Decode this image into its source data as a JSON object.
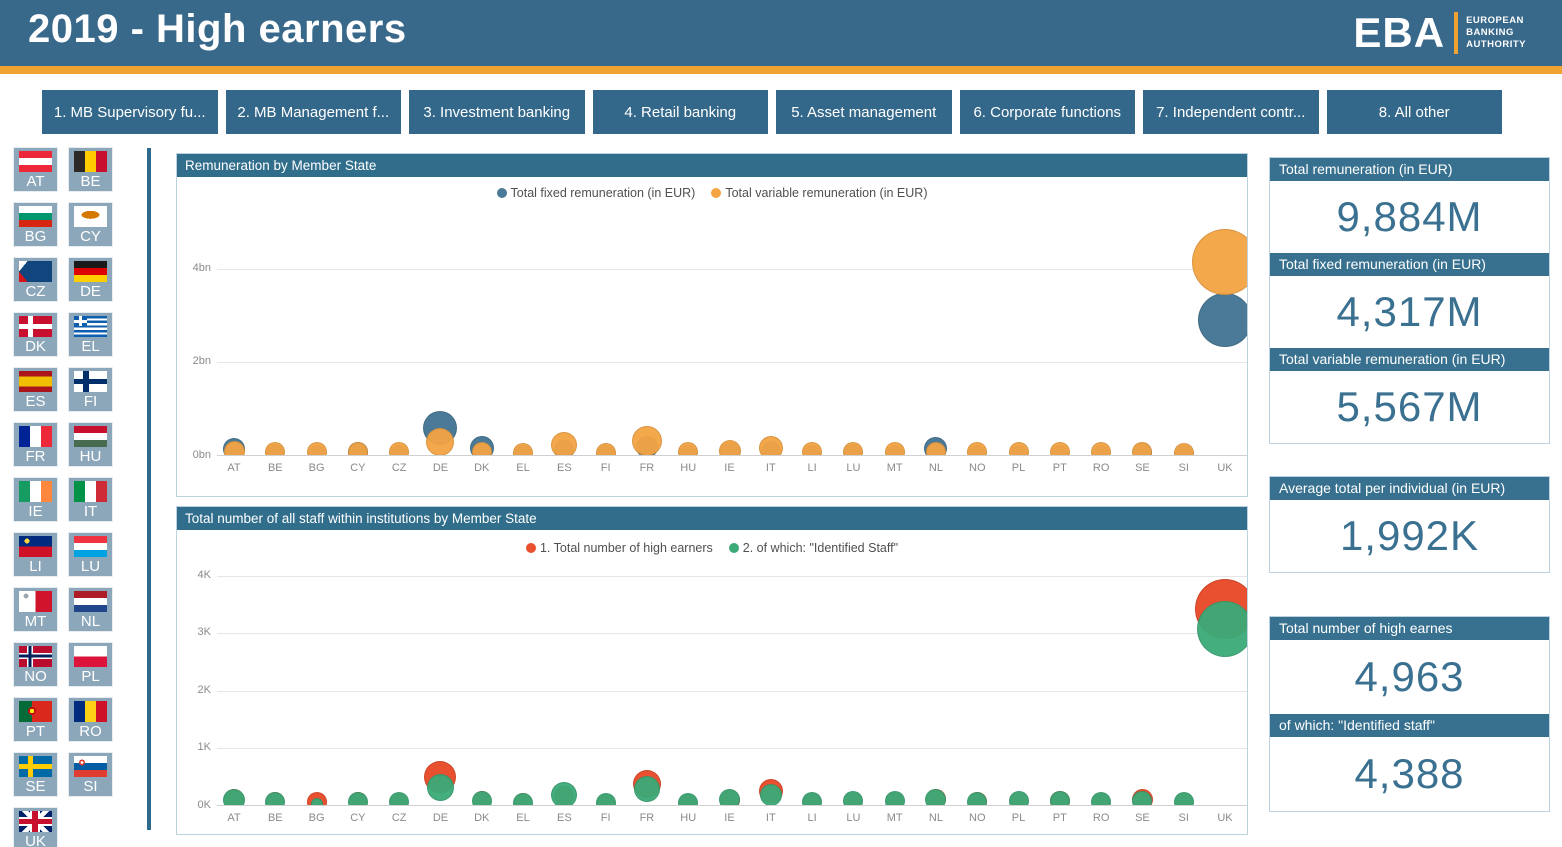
{
  "header": {
    "title": "2019 - High earners",
    "logo": {
      "abbr": "EBA",
      "lines": [
        "EUROPEAN",
        "BANKING",
        "AUTHORITY"
      ]
    }
  },
  "tabs": [
    {
      "label": "1. MB Supervisory fu..."
    },
    {
      "label": "2. MB Management f..."
    },
    {
      "label": "3. Investment banking"
    },
    {
      "label": "4. Retail banking"
    },
    {
      "label": "5. Asset management"
    },
    {
      "label": "6. Corporate functions"
    },
    {
      "label": "7. Independent contr..."
    },
    {
      "label": "8. All other"
    }
  ],
  "flags": [
    "AT",
    "BE",
    "BG",
    "CY",
    "CZ",
    "DE",
    "DK",
    "EL",
    "ES",
    "FI",
    "FR",
    "HU",
    "IE",
    "IT",
    "LI",
    "LU",
    "MT",
    "NL",
    "NO",
    "PL",
    "PT",
    "RO",
    "SE",
    "SI",
    "UK"
  ],
  "colors": {
    "header_teal": "#38688A",
    "accent_orange": "#F0A230",
    "fixed_blue": "#4A7A97",
    "variable_orange": "#F4A443",
    "high_earners_red": "#E8502F",
    "identified_green": "#3BAA78"
  },
  "chart_data": [
    {
      "type": "scatter",
      "title": "Remuneration by Member State",
      "categories": [
        "AT",
        "BE",
        "BG",
        "CY",
        "CZ",
        "DE",
        "DK",
        "EL",
        "ES",
        "FI",
        "FR",
        "HU",
        "IE",
        "IT",
        "LI",
        "LU",
        "MT",
        "NL",
        "NO",
        "PL",
        "PT",
        "RO",
        "SE",
        "SI",
        "UK"
      ],
      "unit": "bn EUR",
      "ylim": [
        0,
        5.26
      ],
      "grid": true,
      "legend_position": "top-center",
      "yticks": [
        {
          "label": "0bn",
          "value": 0
        },
        {
          "label": "2bn",
          "value": 2
        },
        {
          "label": "4bn",
          "value": 4
        }
      ],
      "series": [
        {
          "name": "Total fixed remuneration (in EUR)",
          "color": "#4A7A97",
          "values": [
            0.15,
            0.06,
            0.04,
            0.09,
            0.05,
            0.6,
            0.17,
            0.05,
            0.12,
            0.05,
            0.2,
            0.04,
            0.08,
            0.1,
            0.05,
            0.06,
            0.05,
            0.15,
            0.05,
            0.05,
            0.05,
            0.04,
            0.07,
            0.04,
            2.9
          ],
          "radii": [
            11,
            9,
            9,
            10,
            9,
            17,
            12,
            9,
            10,
            9,
            11,
            9,
            10,
            10,
            9,
            9,
            9,
            11.5,
            9,
            9,
            9,
            9,
            9.5,
            9,
            27
          ]
        },
        {
          "name": "Total variable remuneration (in EUR)",
          "color": "#F4A443",
          "values": [
            0.1,
            0.085,
            0.075,
            0.075,
            0.08,
            0.31,
            0.08,
            0.07,
            0.225,
            0.07,
            0.33,
            0.075,
            0.11,
            0.165,
            0.08,
            0.09,
            0.075,
            0.095,
            0.075,
            0.085,
            0.08,
            0.075,
            0.09,
            0.07,
            4.15
          ],
          "radii": [
            10.5,
            10,
            10,
            10,
            10,
            14,
            10,
            10,
            13,
            10,
            15,
            10,
            11,
            12,
            10,
            10,
            10,
            10,
            10,
            10,
            10,
            10,
            10,
            10,
            33
          ]
        }
      ]
    },
    {
      "type": "scatter",
      "title": "Total number of all staff within institutions by Member State",
      "categories": [
        "AT",
        "BE",
        "BG",
        "CY",
        "CZ",
        "DE",
        "DK",
        "EL",
        "ES",
        "FI",
        "FR",
        "HU",
        "IE",
        "IT",
        "LI",
        "LU",
        "MT",
        "NL",
        "NO",
        "PL",
        "PT",
        "RO",
        "SE",
        "SI",
        "UK"
      ],
      "unit": "K staff",
      "ylim": [
        0,
        4.26
      ],
      "grid": true,
      "legend_position": "top-center",
      "yticks": [
        {
          "label": "0K",
          "value": 0
        },
        {
          "label": "1K",
          "value": 1
        },
        {
          "label": "2K",
          "value": 2
        },
        {
          "label": "3K",
          "value": 3
        },
        {
          "label": "4K",
          "value": 4
        }
      ],
      "series": [
        {
          "name": "1. Total number of high earners",
          "color": "#E8502F",
          "values": [
            0.13,
            0.08,
            0.075,
            0.08,
            0.07,
            0.5,
            0.1,
            0.065,
            0.17,
            0.06,
            0.38,
            0.06,
            0.11,
            0.26,
            0.07,
            0.09,
            0.08,
            0.12,
            0.08,
            0.085,
            0.09,
            0.07,
            0.11,
            0.07,
            3.42
          ],
          "radii": [
            10,
            9,
            10,
            9,
            9,
            16,
            9,
            9,
            10,
            9,
            14,
            9,
            10,
            12,
            9,
            9,
            9,
            10,
            9.5,
            9,
            10,
            9,
            10.5,
            9,
            30
          ]
        },
        {
          "name": "2. of which: \"Identified Staff\"",
          "color": "#3BAA78",
          "values": [
            0.1,
            0.075,
            0.03,
            0.075,
            0.065,
            0.33,
            0.095,
            0.06,
            0.185,
            0.06,
            0.3,
            0.06,
            0.105,
            0.19,
            0.07,
            0.09,
            0.08,
            0.105,
            0.07,
            0.085,
            0.08,
            0.07,
            0.09,
            0.07,
            3.08
          ],
          "radii": [
            11,
            10,
            6,
            10,
            10,
            13.5,
            10,
            10,
            13,
            10,
            13,
            10,
            10.5,
            11,
            10,
            10,
            10,
            10.5,
            10,
            10,
            10,
            10,
            10,
            10,
            28
          ]
        }
      ]
    }
  ],
  "kpis": {
    "groups": [
      {
        "cards": [
          {
            "label": "Total remuneration (in EUR)",
            "value": "9,884M"
          },
          {
            "label": "Total fixed remuneration (in EUR)",
            "value": "4,317M"
          },
          {
            "label": "Total variable remuneration (in EUR)",
            "value": "5,567M"
          }
        ]
      },
      {
        "cards": [
          {
            "label": "Average total per individual (in EUR)",
            "value": "1,992K"
          }
        ]
      },
      {
        "cards": [
          {
            "label": "Total number of high earnes",
            "value": "4,963"
          },
          {
            "label": "of which: \"Identified staff\"",
            "value": "4,388"
          }
        ]
      }
    ]
  }
}
